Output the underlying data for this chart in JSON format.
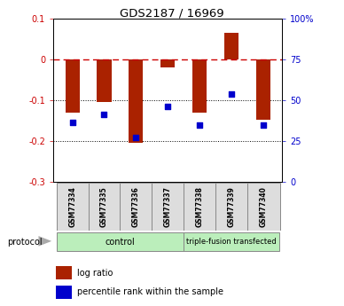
{
  "title": "GDS2187 / 16969",
  "samples": [
    "GSM77334",
    "GSM77335",
    "GSM77336",
    "GSM77337",
    "GSM77338",
    "GSM77339",
    "GSM77340"
  ],
  "log_ratio": [
    -0.13,
    -0.105,
    -0.205,
    -0.02,
    -0.13,
    0.065,
    -0.148
  ],
  "dot_y_left": [
    -0.155,
    -0.135,
    -0.192,
    -0.115,
    -0.16,
    -0.085,
    -0.16
  ],
  "bar_color": "#AA2200",
  "dot_color": "#0000CC",
  "ylim_left": [
    -0.3,
    0.1
  ],
  "ylim_right": [
    0,
    100
  ],
  "y_ticks_left": [
    -0.3,
    -0.2,
    -0.1,
    0.0,
    0.1
  ],
  "y_ticks_right": [
    0,
    25,
    50,
    75,
    100
  ],
  "y_ticks_right_labels": [
    "0",
    "25",
    "50",
    "75",
    "100%"
  ],
  "hline_zero_color": "#CC0000",
  "hline_dotted_color": "#000000",
  "bg_color": "#FFFFFF",
  "protocol_label": "protocol",
  "group1_label": "control",
  "group1_color": "#BBEEBB",
  "group2_label": "triple-fusion transfected",
  "group2_color": "#BBEEBB",
  "legend_bar_label": "log ratio",
  "legend_dot_label": "percentile rank within the sample"
}
